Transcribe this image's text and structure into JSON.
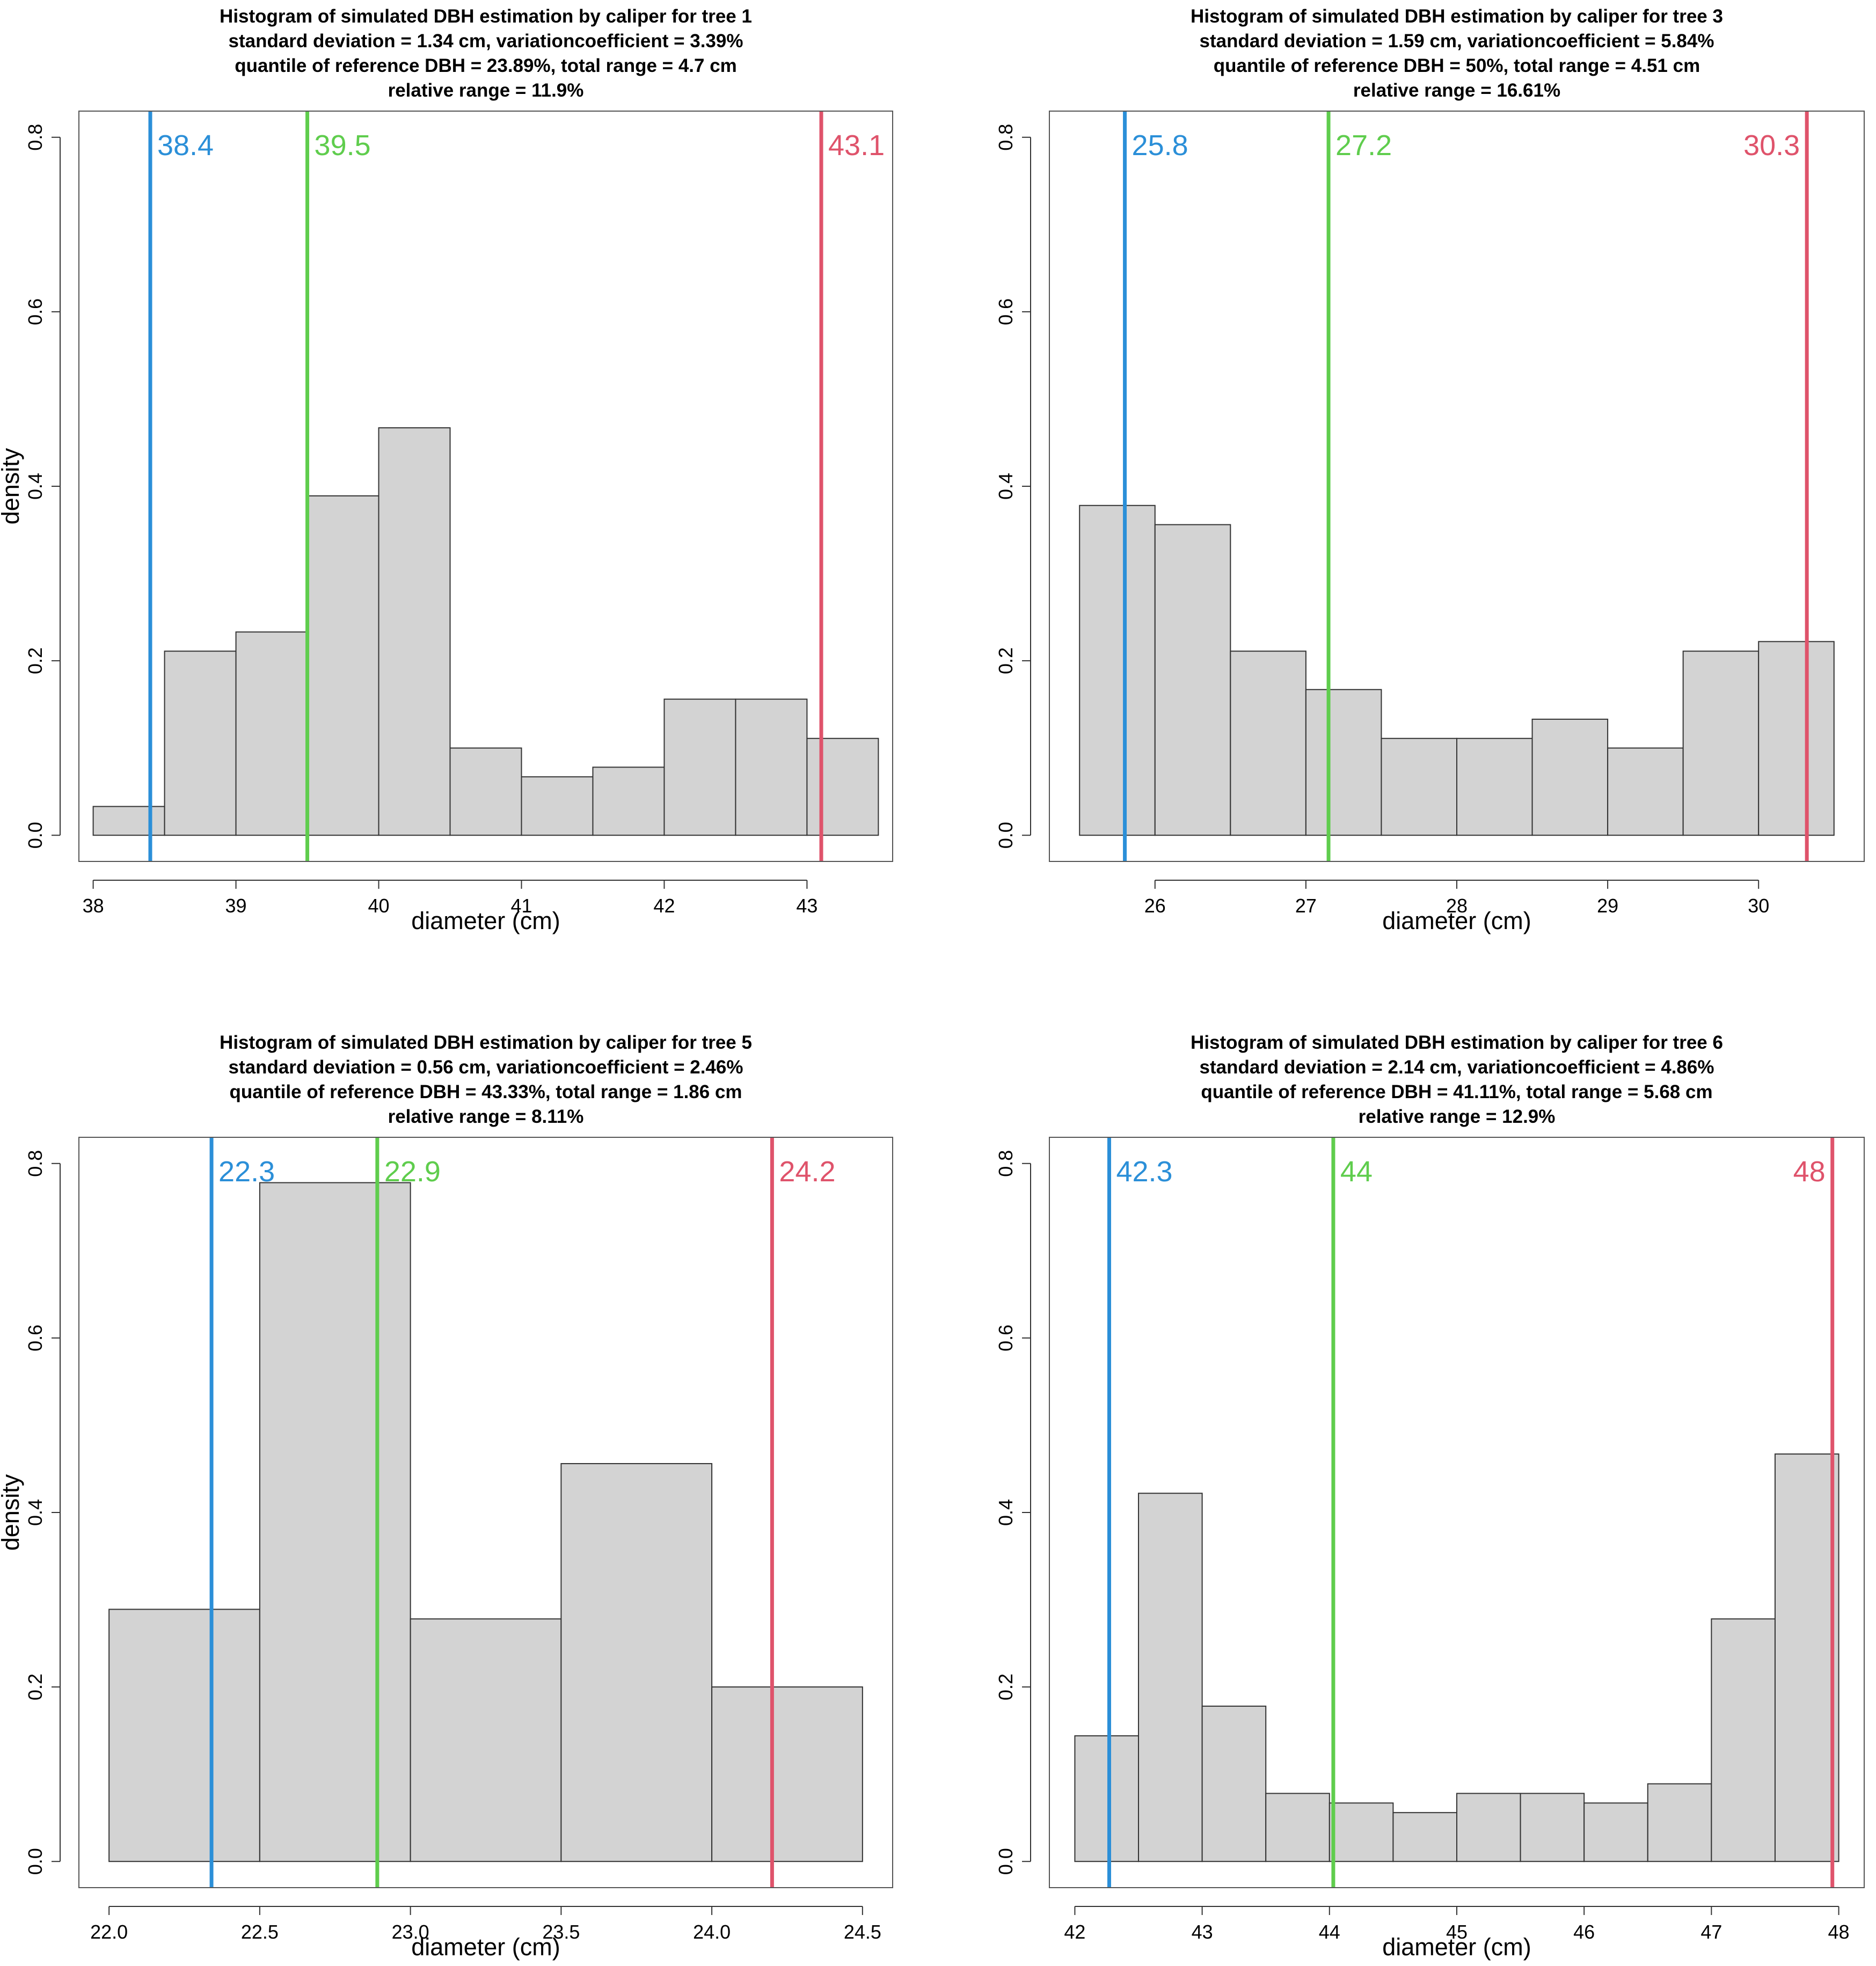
{
  "chart_data": [
    {
      "type": "histogram",
      "title_lines": [
        "Histogram of simulated DBH estimation by caliper for tree 1",
        "standard deviation = 1.34 cm, variationcoefficient = 3.39%",
        "quantile of reference DBH = 23.89%, total range = 4.7 cm",
        "relative range = 11.9%"
      ],
      "xlabel": "diameter (cm)",
      "ylabel": "density",
      "xlim": [
        37.9,
        43.6
      ],
      "ylim": [
        -0.03,
        0.83
      ],
      "xticks": [
        38,
        39,
        40,
        41,
        42,
        43
      ],
      "yticks": [
        0.0,
        0.2,
        0.4,
        0.6,
        0.8
      ],
      "bins": [
        38.0,
        38.5,
        39.0,
        39.5,
        40.0,
        40.5,
        41.0,
        41.5,
        42.0,
        42.5,
        43.0,
        43.5
      ],
      "density": [
        0.033,
        0.211,
        0.233,
        0.389,
        0.467,
        0.1,
        0.067,
        0.078,
        0.156,
        0.156,
        0.111
      ],
      "vlines": [
        {
          "x": 38.4,
          "label": "38.4",
          "color": "#2b8fd8",
          "label_side": "right"
        },
        {
          "x": 39.5,
          "label": "39.5",
          "color": "#5fcd4d",
          "label_side": "right"
        },
        {
          "x": 43.1,
          "label": "43.1",
          "color": "#df536b",
          "label_side": "right"
        }
      ]
    },
    {
      "type": "histogram",
      "title_lines": [
        "Histogram of simulated DBH estimation by caliper for tree 3",
        "standard deviation = 1.59 cm, variationcoefficient = 5.84%",
        "quantile of reference DBH = 50%, total range = 4.51 cm",
        "relative range = 16.61%"
      ],
      "xlabel": "diameter (cm)",
      "ylabel": "",
      "xlim": [
        25.3,
        30.7
      ],
      "ylim": [
        -0.03,
        0.83
      ],
      "xticks": [
        26,
        27,
        28,
        29,
        30
      ],
      "yticks": [
        0.0,
        0.2,
        0.4,
        0.6,
        0.8
      ],
      "bins": [
        25.5,
        26.0,
        26.5,
        27.0,
        27.5,
        28.0,
        28.5,
        29.0,
        29.5,
        30.0,
        30.5
      ],
      "density": [
        0.378,
        0.356,
        0.211,
        0.167,
        0.111,
        0.111,
        0.133,
        0.1,
        0.211,
        0.222
      ],
      "vlines": [
        {
          "x": 25.8,
          "label": "25.8",
          "color": "#2b8fd8",
          "label_side": "right"
        },
        {
          "x": 27.15,
          "label": "27.2",
          "color": "#5fcd4d",
          "label_side": "right"
        },
        {
          "x": 30.32,
          "label": "30.3",
          "color": "#df536b",
          "label_side": "left"
        }
      ]
    },
    {
      "type": "histogram",
      "title_lines": [
        "Histogram of simulated DBH estimation by caliper for tree 5",
        "standard deviation = 0.56 cm, variationcoefficient = 2.46%",
        "quantile of reference DBH = 43.33%, total range = 1.86 cm",
        "relative range = 8.11%"
      ],
      "xlabel": "diameter (cm)",
      "ylabel": "density",
      "xlim": [
        21.9,
        24.6
      ],
      "ylim": [
        -0.03,
        0.83
      ],
      "xticks": [
        22.0,
        22.5,
        23.0,
        23.5,
        24.0,
        24.5
      ],
      "yticks": [
        0.0,
        0.2,
        0.4,
        0.6,
        0.8
      ],
      "bins": [
        22.0,
        22.5,
        23.0,
        23.5,
        24.0,
        24.5
      ],
      "density": [
        0.289,
        0.778,
        0.278,
        0.456,
        0.2
      ],
      "vlines": [
        {
          "x": 22.34,
          "label": "22.3",
          "color": "#2b8fd8",
          "label_side": "right"
        },
        {
          "x": 22.89,
          "label": "22.9",
          "color": "#5fcd4d",
          "label_side": "right"
        },
        {
          "x": 24.2,
          "label": "24.2",
          "color": "#df536b",
          "label_side": "right"
        }
      ]
    },
    {
      "type": "histogram",
      "title_lines": [
        "Histogram of simulated DBH estimation by caliper for tree 6",
        "standard deviation = 2.14 cm, variationcoefficient = 4.86%",
        "quantile of reference DBH = 41.11%, total range = 5.68 cm",
        "relative range = 12.9%"
      ],
      "xlabel": "diameter (cm)",
      "ylabel": "",
      "xlim": [
        41.8,
        48.2
      ],
      "ylim": [
        -0.03,
        0.83
      ],
      "xticks": [
        42,
        43,
        44,
        45,
        46,
        47,
        48
      ],
      "yticks": [
        0.0,
        0.2,
        0.4,
        0.6,
        0.8
      ],
      "bins": [
        42.0,
        42.5,
        43.0,
        43.5,
        44.0,
        44.5,
        45.0,
        45.5,
        46.0,
        46.5,
        47.0,
        47.5,
        48.0
      ],
      "density": [
        0.144,
        0.422,
        0.178,
        0.078,
        0.067,
        0.056,
        0.078,
        0.078,
        0.067,
        0.089,
        0.278,
        0.467
      ],
      "vlines": [
        {
          "x": 42.27,
          "label": "42.3",
          "color": "#2b8fd8",
          "label_side": "right"
        },
        {
          "x": 44.03,
          "label": "44",
          "color": "#5fcd4d",
          "label_side": "right"
        },
        {
          "x": 47.95,
          "label": "48",
          "color": "#df536b",
          "label_side": "left"
        }
      ]
    }
  ]
}
